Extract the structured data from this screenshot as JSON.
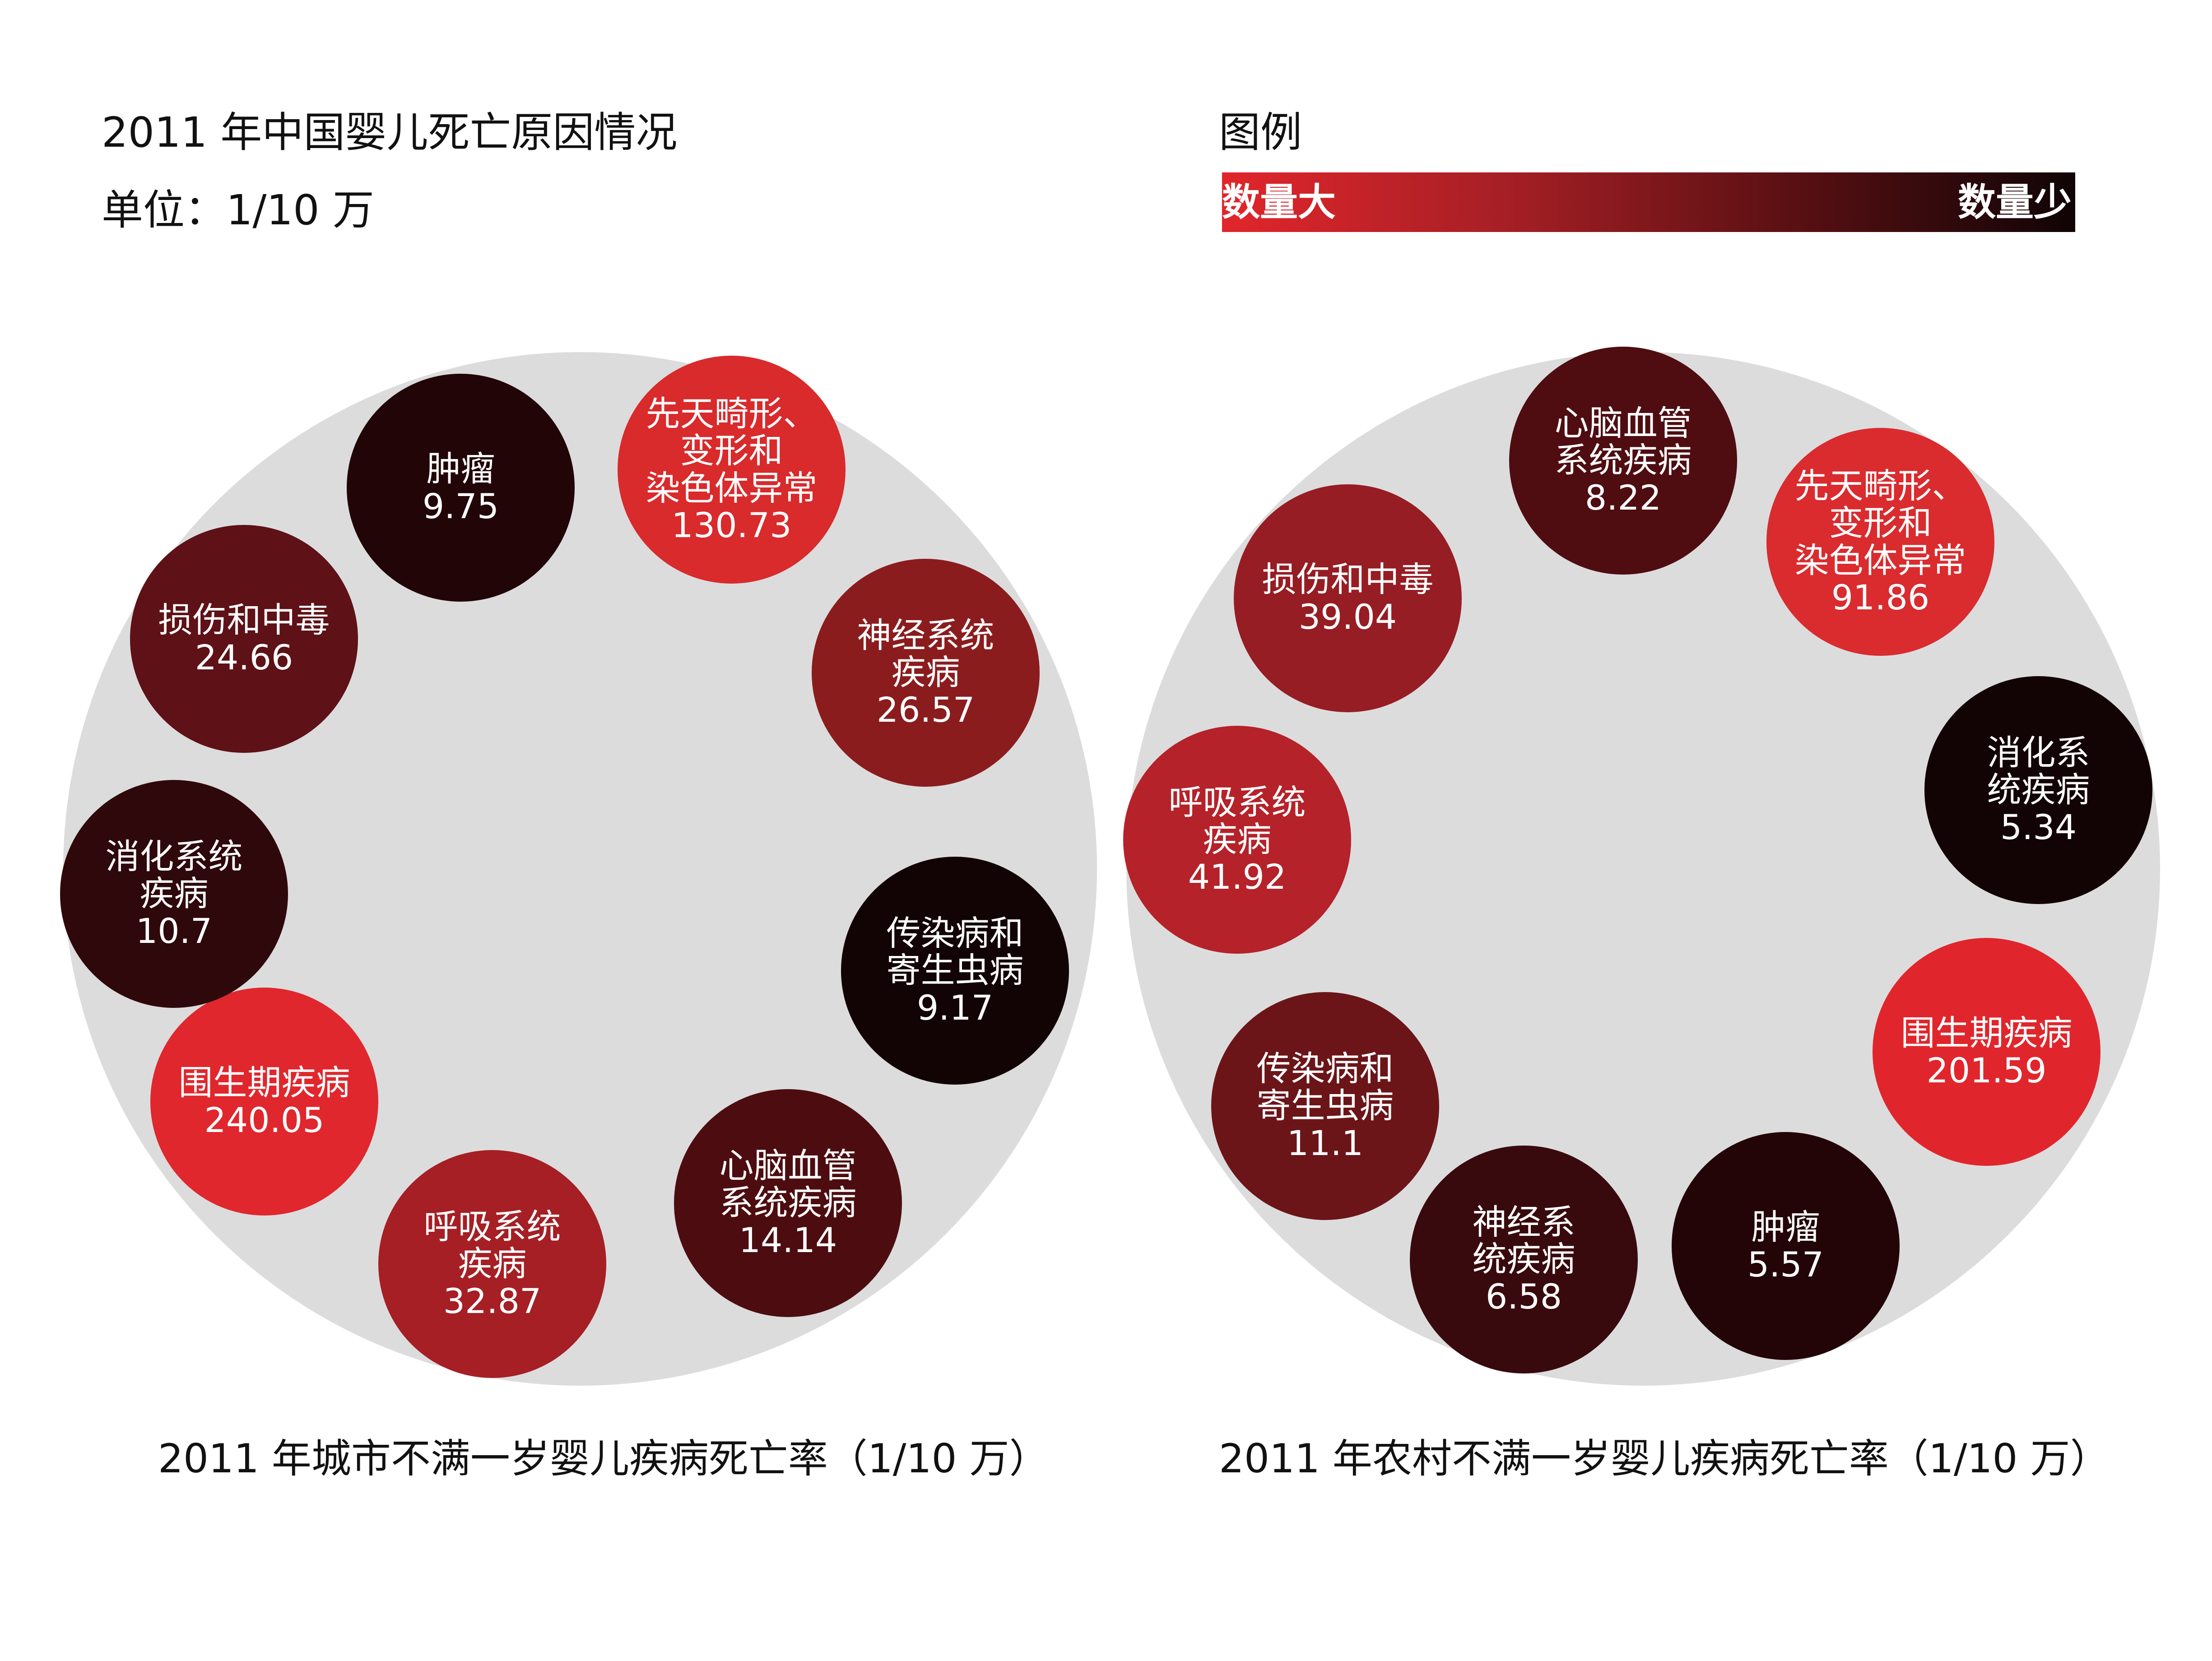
{
  "header": {
    "title": "2011 年中国婴儿死亡原因情况",
    "unit": "单位：1/10 万"
  },
  "legend": {
    "title": "图例",
    "high_label": "数量大",
    "low_label": "数量少",
    "gradient_colors": [
      "#e1262b",
      "#a51f25",
      "#5a1013",
      "#100406"
    ]
  },
  "colors": {
    "ring": "#dcdcdd",
    "text": "#ffffff"
  },
  "chart_data": [
    {
      "type": "bubble",
      "title": "2011 年城市不满一岁婴儿疾病死亡率（1/10 万）",
      "unit": "1/10 万",
      "items": [
        {
          "name": "肿瘤",
          "value": 9.75,
          "color": "#220507"
        },
        {
          "name": "先天畸形、\n变形和\n染色体异常",
          "value": 130.73,
          "color": "#d92a2c"
        },
        {
          "name": "神经系统\n疾病",
          "value": 26.57,
          "color": "#8b1c1e"
        },
        {
          "name": "传染病和\n寄生虫病",
          "value": 9.17,
          "color": "#120304"
        },
        {
          "name": "心脑血管\n系统疾病",
          "value": 14.14,
          "color": "#4d0d10"
        },
        {
          "name": "呼吸系统\n疾病",
          "value": 32.87,
          "color": "#a51f25"
        },
        {
          "name": "围生期疾病",
          "value": 240.05,
          "color": "#e0272d"
        },
        {
          "name": "消化系统\n疾病",
          "value": 10.7,
          "color": "#2f080b"
        },
        {
          "name": "损伤和中毒",
          "value": 24.66,
          "color": "#5e1116"
        }
      ]
    },
    {
      "type": "bubble",
      "title": "2011 年农村不满一岁婴儿疾病死亡率（1/10 万）",
      "unit": "1/10 万",
      "items": [
        {
          "name": "心脑血管\n系统疾病",
          "value": 8.22,
          "color": "#4f0d11"
        },
        {
          "name": "先天畸形、\n变形和\n染色体异常",
          "value": 91.86,
          "color": "#da2b2e"
        },
        {
          "name": "消化系\n统疾病",
          "value": 5.34,
          "color": "#120304"
        },
        {
          "name": "围生期疾病",
          "value": 201.59,
          "color": "#e0262c"
        },
        {
          "name": "肿瘤",
          "value": 5.57,
          "color": "#240507"
        },
        {
          "name": "神经系\n统疾病",
          "value": 6.58,
          "color": "#390a0d"
        },
        {
          "name": "传染病和\n寄生虫病",
          "value": 11.1,
          "color": "#6b1519"
        },
        {
          "name": "呼吸系统\n疾病",
          "value": 41.92,
          "color": "#b5222a"
        },
        {
          "name": "损伤和中毒",
          "value": 39.04,
          "color": "#961d23"
        }
      ]
    }
  ]
}
